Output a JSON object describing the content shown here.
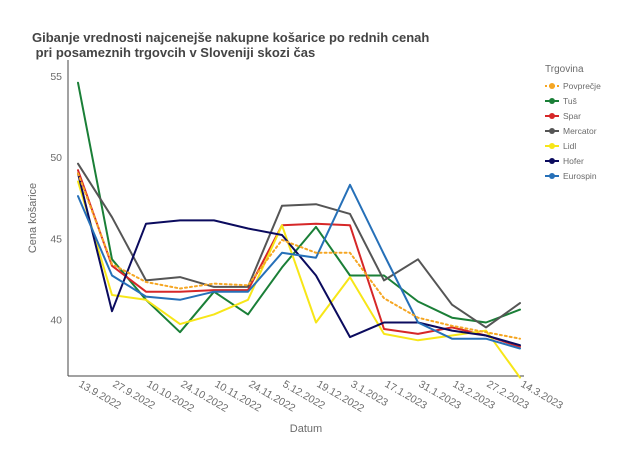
{
  "chart_data": {
    "type": "line",
    "title_lines": [
      "Gibanje vrednosti najcenejše nakupne košarice  po rednih cenah",
      " pri posameznih trgovcih v Sloveniji skozi čas"
    ],
    "xlabel": "Datum",
    "ylabel": "Cena košarice",
    "ylim": [
      36.5,
      56
    ],
    "yticks": [
      40,
      45,
      50,
      55
    ],
    "grid": false,
    "legend_position": "right",
    "legend_title": "Trgovina",
    "categories": [
      "13.9.2022",
      "27.9.2022",
      "10.10.2022",
      "24.10.2022",
      "10.11.2022",
      "24.11.2022",
      "5.12.2022",
      "19.12.2022",
      "3.1.2023",
      "17.1.2023",
      "31.1.2023",
      "13.2.2023",
      "27.2.2023",
      "14.3.2023"
    ],
    "series": [
      {
        "name": "Povprečje",
        "color": "#f5a623",
        "dashed": true,
        "values": [
          49.0,
          43.4,
          42.3,
          41.9,
          42.2,
          42.1,
          44.9,
          44.1,
          44.1,
          41.3,
          40.1,
          39.6,
          39.2,
          38.8
        ]
      },
      {
        "name": "Tuš",
        "color": "#1a7f37",
        "values": [
          54.6,
          43.7,
          41.2,
          39.2,
          41.7,
          40.3,
          43.2,
          45.7,
          42.7,
          42.7,
          41.1,
          40.1,
          39.8,
          40.6
        ]
      },
      {
        "name": "Spar",
        "color": "#d62728",
        "values": [
          49.2,
          43.3,
          41.7,
          41.7,
          41.8,
          41.8,
          45.8,
          45.9,
          45.8,
          39.4,
          39.1,
          39.5,
          39.0,
          38.3
        ]
      },
      {
        "name": "Mercator",
        "color": "#555555",
        "values": [
          49.6,
          46.3,
          42.4,
          42.6,
          42.0,
          42.0,
          47.0,
          47.1,
          46.5,
          42.4,
          43.7,
          40.9,
          39.5,
          41.0
        ]
      },
      {
        "name": "Lidl",
        "color": "#f7e618",
        "values": [
          48.5,
          41.5,
          41.2,
          39.7,
          40.3,
          41.2,
          45.8,
          39.8,
          42.6,
          39.1,
          38.7,
          39.0,
          39.3,
          36.4
        ]
      },
      {
        "name": "Hofer",
        "color": "#0b0b5e",
        "values": [
          49.0,
          40.5,
          45.9,
          46.1,
          46.1,
          45.6,
          45.2,
          42.7,
          38.9,
          39.8,
          39.8,
          39.3,
          39.0,
          38.4
        ]
      },
      {
        "name": "Eurospin",
        "color": "#2670b8",
        "values": [
          47.6,
          42.7,
          41.4,
          41.2,
          41.7,
          41.7,
          44.1,
          43.8,
          48.3,
          44.0,
          39.8,
          38.8,
          38.8,
          38.2
        ]
      }
    ]
  }
}
